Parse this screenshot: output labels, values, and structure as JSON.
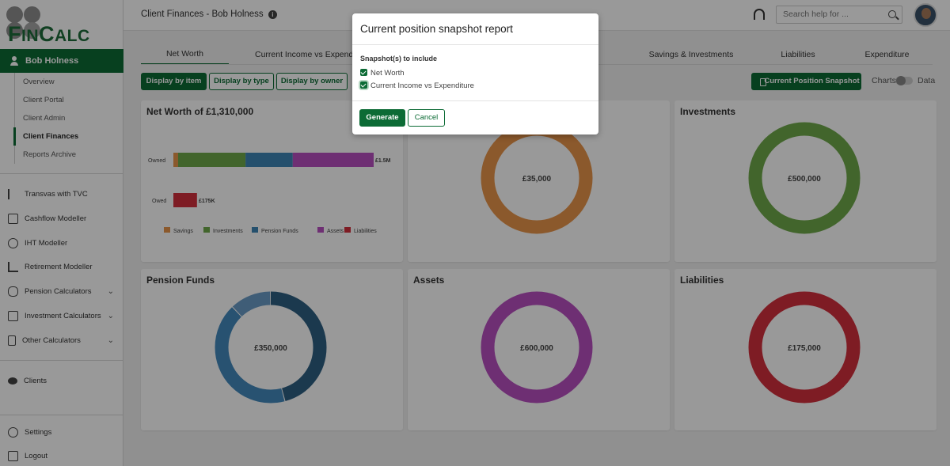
{
  "brand": {
    "name": "FinCalc",
    "accent": "#0c6b35"
  },
  "sidebar": {
    "client_name": "Bob Holness",
    "subnav": [
      "Overview",
      "Client Portal",
      "Client Admin",
      "Client Finances",
      "Reports Archive"
    ],
    "active_subnav": "Client Finances",
    "tools": [
      {
        "label": "Transvas with TVC",
        "icon": "signpost-icon"
      },
      {
        "label": "Cashflow Modeller",
        "icon": "chart-window-icon"
      },
      {
        "label": "IHT Modeller",
        "icon": "pie-icon"
      },
      {
        "label": "Retirement Modeller",
        "icon": "bar-chart-icon"
      },
      {
        "label": "Pension Calculators",
        "icon": "piggy-bank-icon",
        "expandable": true
      },
      {
        "label": "Investment Calculators",
        "icon": "investment-icon",
        "expandable": true
      },
      {
        "label": "Other Calculators",
        "icon": "calculator-icon",
        "expandable": true
      }
    ],
    "clients_label": "Clients",
    "settings_label": "Settings",
    "logout_label": "Logout"
  },
  "header": {
    "title": "Client Finances - Bob Holness",
    "search_placeholder": "Search help for ..."
  },
  "tabs": [
    "Net Worth",
    "Current Income vs Expenditure",
    "",
    "Savings & Investments",
    "Liabilities",
    "Expenditure"
  ],
  "active_tab": "Net Worth",
  "display_buttons": [
    "Display by item",
    "Display by type",
    "Display by owner"
  ],
  "snapshot_button": "Current Position Snapshot",
  "view_toggle": {
    "left": "Charts",
    "right": "Data"
  },
  "cards": {
    "net_worth": {
      "title": "Net Worth of £1,310,000",
      "chart_data": {
        "type": "bar",
        "orientation": "horizontal",
        "stacked": true,
        "categories": [
          "Owned",
          "Owed"
        ],
        "series": [
          {
            "name": "Savings",
            "color": "#e8944a",
            "values": [
              35000,
              0
            ]
          },
          {
            "name": "Investments",
            "color": "#6fa84a",
            "values": [
              500000,
              0
            ]
          },
          {
            "name": "Pension Funds",
            "color": "#3f86b6",
            "values": [
              350000,
              0
            ]
          },
          {
            "name": "Assets",
            "color": "#b84fc0",
            "values": [
              600000,
              0
            ]
          },
          {
            "name": "Liabilities",
            "color": "#d32f3c",
            "values": [
              0,
              175000
            ]
          }
        ],
        "data_labels": [
          "£1.5M",
          "£175K"
        ],
        "legend": "bottom"
      }
    },
    "savings": {
      "title": "",
      "value": "£35,000",
      "color": "#e8944a"
    },
    "investments": {
      "title": "Investments",
      "value": "£500,000",
      "color": "#6fa84a"
    },
    "pension_funds": {
      "title": "Pension Funds",
      "value": "£350,000",
      "segments": [
        {
          "color": "#2e5f82",
          "fraction": 0.46
        },
        {
          "color": "#4389bd",
          "fraction": 0.42
        },
        {
          "color": "#6a9cc6",
          "fraction": 0.12
        }
      ]
    },
    "assets": {
      "title": "Assets",
      "value": "£600,000",
      "color": "#b84fc0"
    },
    "liabilities": {
      "title": "Liabilities",
      "value": "£175,000",
      "color": "#d32f3c"
    }
  },
  "modal": {
    "title": "Current position snapshot report",
    "subtitle": "Snapshot(s) to include",
    "options": [
      {
        "label": "Net Worth",
        "checked": true
      },
      {
        "label": "Current Income vs Expenditure",
        "checked": true
      }
    ],
    "generate_label": "Generate",
    "cancel_label": "Cancel"
  }
}
